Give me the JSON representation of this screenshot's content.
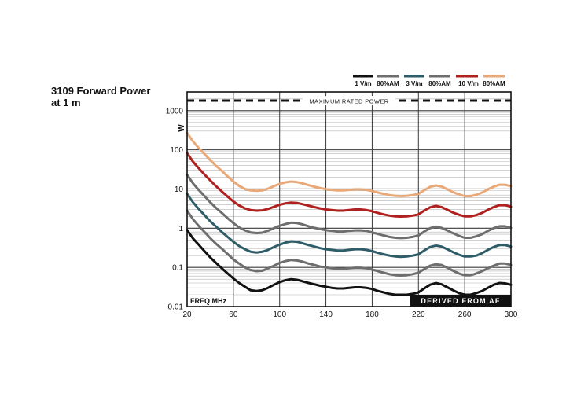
{
  "title_lines": [
    "3109 Forward Power",
    "at 1 m"
  ],
  "colors": {
    "grid_minor": "#b3b3b3",
    "grid_major": "#3a3a3a",
    "frame": "#111111"
  },
  "chart_data": {
    "type": "line",
    "ylabel": "W",
    "xlabel": "FREQ  MHz",
    "y_scale": "log",
    "ylim": [
      0.01,
      3000
    ],
    "xlim": [
      20,
      300
    ],
    "y_ticks": [
      "0.01",
      "0.1",
      "1",
      "10",
      "100",
      "1000"
    ],
    "x_ticks": [
      "20",
      "60",
      "100",
      "140",
      "180",
      "220",
      "260",
      "300"
    ],
    "max_power_label": "MAXIMUM RATED POWER",
    "max_power_w": 1800,
    "derived_label": "DERIVED FROM AF",
    "legend": {
      "position": "top-right",
      "entries": [
        {
          "label": "1 V/m",
          "color": "#111111"
        },
        {
          "label": "80%AM",
          "color": "#6e6e6e"
        },
        {
          "label": "3 V/m",
          "color": "#2e5d68"
        },
        {
          "label": "80%AM",
          "color": "#6e6e6e"
        },
        {
          "label": "10 V/m",
          "color": "#b0201f"
        },
        {
          "label": "80%AM",
          "color": "#e8a878"
        }
      ]
    },
    "x": [
      20,
      25,
      30,
      35,
      40,
      45,
      50,
      55,
      60,
      65,
      70,
      75,
      80,
      85,
      90,
      95,
      100,
      105,
      110,
      115,
      120,
      125,
      130,
      135,
      140,
      145,
      150,
      155,
      160,
      165,
      170,
      175,
      180,
      185,
      190,
      195,
      200,
      205,
      210,
      215,
      220,
      225,
      230,
      235,
      240,
      245,
      250,
      255,
      260,
      265,
      270,
      275,
      280,
      285,
      290,
      295,
      300
    ],
    "series": [
      {
        "name": "1 V/m",
        "color": "#111111",
        "values": [
          0.9,
          0.55,
          0.38,
          0.26,
          0.18,
          0.13,
          0.095,
          0.07,
          0.052,
          0.04,
          0.032,
          0.026,
          0.025,
          0.026,
          0.03,
          0.036,
          0.042,
          0.047,
          0.05,
          0.048,
          0.044,
          0.04,
          0.037,
          0.034,
          0.032,
          0.03,
          0.029,
          0.029,
          0.03,
          0.031,
          0.031,
          0.03,
          0.028,
          0.025,
          0.023,
          0.021,
          0.02,
          0.02,
          0.02,
          0.021,
          0.023,
          0.029,
          0.036,
          0.04,
          0.037,
          0.031,
          0.026,
          0.022,
          0.02,
          0.02,
          0.022,
          0.025,
          0.03,
          0.036,
          0.04,
          0.039,
          0.036
        ]
      },
      {
        "name": "80%AM",
        "color": "#6e6e6e",
        "values": [
          2.8,
          1.7,
          1.15,
          0.8,
          0.56,
          0.4,
          0.3,
          0.22,
          0.16,
          0.125,
          0.1,
          0.085,
          0.08,
          0.082,
          0.095,
          0.11,
          0.13,
          0.145,
          0.155,
          0.15,
          0.14,
          0.125,
          0.115,
          0.105,
          0.1,
          0.095,
          0.092,
          0.092,
          0.095,
          0.098,
          0.098,
          0.095,
          0.088,
          0.08,
          0.073,
          0.067,
          0.063,
          0.062,
          0.063,
          0.067,
          0.073,
          0.09,
          0.11,
          0.12,
          0.115,
          0.098,
          0.082,
          0.07,
          0.063,
          0.063,
          0.07,
          0.08,
          0.095,
          0.11,
          0.125,
          0.125,
          0.115
        ]
      },
      {
        "name": "3 V/m",
        "color": "#2e5d68",
        "values": [
          7.5,
          4.6,
          3.1,
          2.15,
          1.5,
          1.1,
          0.8,
          0.6,
          0.45,
          0.35,
          0.29,
          0.25,
          0.24,
          0.25,
          0.28,
          0.33,
          0.38,
          0.43,
          0.46,
          0.45,
          0.41,
          0.37,
          0.34,
          0.31,
          0.29,
          0.28,
          0.27,
          0.27,
          0.28,
          0.29,
          0.29,
          0.28,
          0.26,
          0.235,
          0.215,
          0.2,
          0.19,
          0.185,
          0.19,
          0.2,
          0.215,
          0.27,
          0.33,
          0.36,
          0.34,
          0.29,
          0.245,
          0.21,
          0.19,
          0.19,
          0.2,
          0.23,
          0.28,
          0.33,
          0.37,
          0.37,
          0.34
        ]
      },
      {
        "name": "80%AM",
        "color": "#6e6e6e",
        "values": [
          23,
          14,
          9.5,
          6.6,
          4.6,
          3.3,
          2.45,
          1.8,
          1.35,
          1.05,
          0.88,
          0.78,
          0.75,
          0.77,
          0.86,
          1.0,
          1.15,
          1.28,
          1.38,
          1.35,
          1.25,
          1.12,
          1.02,
          0.95,
          0.89,
          0.85,
          0.82,
          0.82,
          0.85,
          0.88,
          0.88,
          0.85,
          0.78,
          0.71,
          0.65,
          0.6,
          0.57,
          0.56,
          0.57,
          0.6,
          0.65,
          0.82,
          1.0,
          1.1,
          1.02,
          0.87,
          0.74,
          0.64,
          0.57,
          0.57,
          0.62,
          0.7,
          0.85,
          1.0,
          1.12,
          1.12,
          1.02
        ]
      },
      {
        "name": "10 V/m",
        "color": "#b0201f",
        "values": [
          82,
          50,
          34,
          23.5,
          16.5,
          11.8,
          8.7,
          6.4,
          4.8,
          3.8,
          3.2,
          2.9,
          2.8,
          2.85,
          3.1,
          3.5,
          3.95,
          4.3,
          4.5,
          4.4,
          4.1,
          3.75,
          3.45,
          3.2,
          3.0,
          2.9,
          2.8,
          2.8,
          2.9,
          3.0,
          3.0,
          2.9,
          2.7,
          2.45,
          2.25,
          2.1,
          2.0,
          1.98,
          2.0,
          2.1,
          2.25,
          2.8,
          3.4,
          3.7,
          3.45,
          2.95,
          2.5,
          2.2,
          2.0,
          2.0,
          2.15,
          2.45,
          2.95,
          3.45,
          3.85,
          3.85,
          3.55
        ]
      },
      {
        "name": "80%AM",
        "color": "#e8a878",
        "values": [
          270,
          165,
          112,
          78,
          55,
          39,
          29,
          21,
          15.5,
          12,
          10,
          9.2,
          9.0,
          9.2,
          10.2,
          11.8,
          13.5,
          14.8,
          15.5,
          15.0,
          13.8,
          12.5,
          11.4,
          10.6,
          9.9,
          9.5,
          9.2,
          9.2,
          9.5,
          9.8,
          9.8,
          9.5,
          8.9,
          8.1,
          7.5,
          7.0,
          6.7,
          6.6,
          6.7,
          7.0,
          7.5,
          9.3,
          11.3,
          12.3,
          11.5,
          9.8,
          8.3,
          7.3,
          6.6,
          6.6,
          7.1,
          8.1,
          9.8,
          11.4,
          12.8,
          12.8,
          11.8
        ]
      }
    ]
  }
}
